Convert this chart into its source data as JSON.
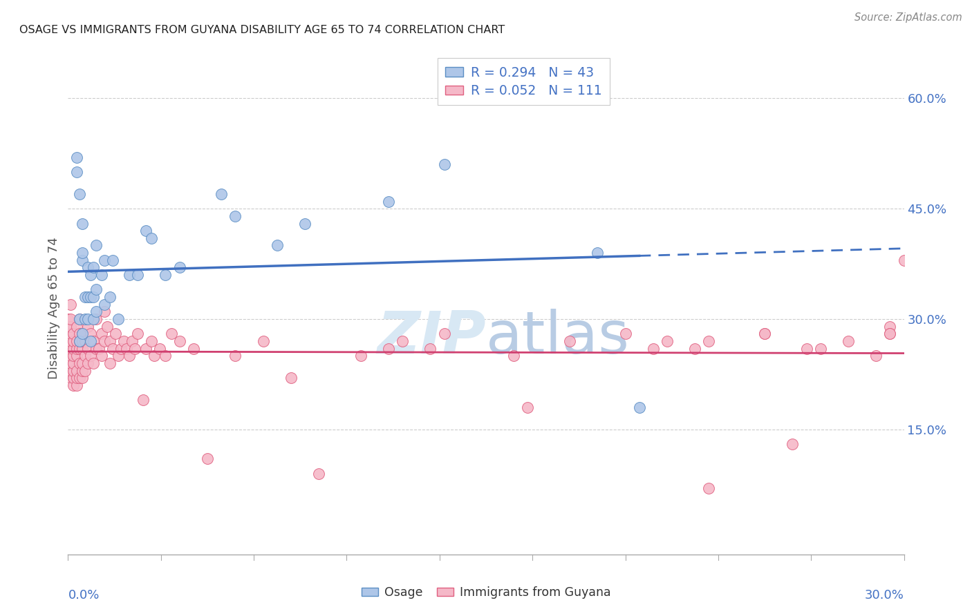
{
  "title": "OSAGE VS IMMIGRANTS FROM GUYANA DISABILITY AGE 65 TO 74 CORRELATION CHART",
  "source_text": "Source: ZipAtlas.com",
  "ylabel": "Disability Age 65 to 74",
  "ytick_vals": [
    0.15,
    0.3,
    0.45,
    0.6
  ],
  "xlim": [
    0.0,
    0.3
  ],
  "ylim": [
    -0.02,
    0.65
  ],
  "legend_label_osage": "Osage",
  "legend_label_guyana": "Immigrants from Guyana",
  "osage_color": "#aec6e8",
  "guyana_color": "#f5b8c8",
  "osage_edge_color": "#5b8ec4",
  "guyana_edge_color": "#e06080",
  "osage_line_color": "#4070c0",
  "guyana_line_color": "#d04070",
  "watermark_zip": "ZIP",
  "watermark_atlas": "atlas",
  "osage_R": 0.294,
  "osage_N": 43,
  "guyana_R": 0.052,
  "guyana_N": 111,
  "osage_x": [
    0.003,
    0.003,
    0.004,
    0.004,
    0.004,
    0.005,
    0.005,
    0.005,
    0.005,
    0.006,
    0.006,
    0.007,
    0.007,
    0.007,
    0.008,
    0.008,
    0.008,
    0.009,
    0.009,
    0.009,
    0.01,
    0.01,
    0.01,
    0.012,
    0.013,
    0.013,
    0.015,
    0.016,
    0.018,
    0.022,
    0.025,
    0.028,
    0.03,
    0.035,
    0.04,
    0.055,
    0.06,
    0.075,
    0.085,
    0.115,
    0.135,
    0.19,
    0.205
  ],
  "osage_y": [
    0.5,
    0.52,
    0.27,
    0.3,
    0.47,
    0.28,
    0.38,
    0.39,
    0.43,
    0.3,
    0.33,
    0.3,
    0.33,
    0.37,
    0.27,
    0.33,
    0.36,
    0.3,
    0.33,
    0.37,
    0.31,
    0.34,
    0.4,
    0.36,
    0.32,
    0.38,
    0.33,
    0.38,
    0.3,
    0.36,
    0.36,
    0.42,
    0.41,
    0.36,
    0.37,
    0.47,
    0.44,
    0.4,
    0.43,
    0.46,
    0.51,
    0.39,
    0.18
  ],
  "guyana_x": [
    0.0,
    0.0,
    0.0,
    0.0,
    0.0,
    0.001,
    0.001,
    0.001,
    0.001,
    0.001,
    0.001,
    0.001,
    0.001,
    0.001,
    0.001,
    0.002,
    0.002,
    0.002,
    0.002,
    0.002,
    0.002,
    0.002,
    0.002,
    0.003,
    0.003,
    0.003,
    0.003,
    0.003,
    0.003,
    0.003,
    0.004,
    0.004,
    0.004,
    0.004,
    0.004,
    0.004,
    0.005,
    0.005,
    0.005,
    0.005,
    0.005,
    0.005,
    0.006,
    0.006,
    0.006,
    0.007,
    0.007,
    0.007,
    0.008,
    0.008,
    0.009,
    0.009,
    0.01,
    0.01,
    0.011,
    0.012,
    0.012,
    0.013,
    0.013,
    0.014,
    0.015,
    0.015,
    0.016,
    0.017,
    0.018,
    0.019,
    0.02,
    0.021,
    0.022,
    0.023,
    0.024,
    0.025,
    0.027,
    0.028,
    0.03,
    0.031,
    0.033,
    0.035,
    0.037,
    0.04,
    0.045,
    0.05,
    0.06,
    0.07,
    0.08,
    0.09,
    0.105,
    0.115,
    0.12,
    0.13,
    0.135,
    0.16,
    0.165,
    0.18,
    0.2,
    0.21,
    0.215,
    0.23,
    0.25,
    0.27,
    0.28,
    0.295,
    0.295,
    0.3,
    0.295,
    0.29,
    0.265,
    0.26,
    0.25,
    0.23,
    0.225
  ],
  "guyana_y": [
    0.24,
    0.26,
    0.27,
    0.29,
    0.3,
    0.22,
    0.23,
    0.24,
    0.25,
    0.26,
    0.27,
    0.28,
    0.29,
    0.3,
    0.32,
    0.21,
    0.22,
    0.23,
    0.24,
    0.25,
    0.26,
    0.27,
    0.28,
    0.21,
    0.22,
    0.23,
    0.25,
    0.26,
    0.27,
    0.29,
    0.22,
    0.24,
    0.26,
    0.27,
    0.28,
    0.3,
    0.22,
    0.23,
    0.24,
    0.26,
    0.27,
    0.28,
    0.23,
    0.25,
    0.27,
    0.24,
    0.26,
    0.29,
    0.25,
    0.28,
    0.24,
    0.27,
    0.26,
    0.3,
    0.26,
    0.25,
    0.28,
    0.27,
    0.31,
    0.29,
    0.24,
    0.27,
    0.26,
    0.28,
    0.25,
    0.26,
    0.27,
    0.26,
    0.25,
    0.27,
    0.26,
    0.28,
    0.19,
    0.26,
    0.27,
    0.25,
    0.26,
    0.25,
    0.28,
    0.27,
    0.26,
    0.11,
    0.25,
    0.27,
    0.22,
    0.09,
    0.25,
    0.26,
    0.27,
    0.26,
    0.28,
    0.25,
    0.18,
    0.27,
    0.28,
    0.26,
    0.27,
    0.27,
    0.28,
    0.26,
    0.27,
    0.29,
    0.28,
    0.38,
    0.28,
    0.25,
    0.26,
    0.13,
    0.28,
    0.07,
    0.26
  ]
}
